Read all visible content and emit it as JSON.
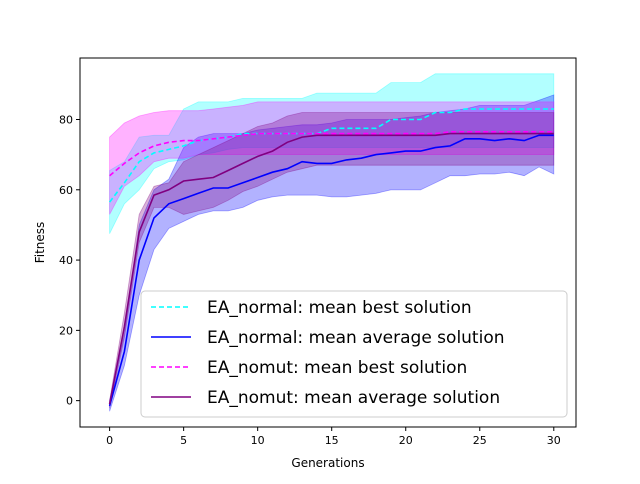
{
  "chart_data": {
    "type": "line",
    "title": "",
    "xlabel": "Generations",
    "ylabel": "Fitness",
    "xlim": [
      -2,
      31.5
    ],
    "ylim": [
      -7.5,
      97.5
    ],
    "xticks": [
      0,
      5,
      10,
      15,
      20,
      25,
      30
    ],
    "yticks": [
      0,
      20,
      40,
      60,
      80
    ],
    "grid": false,
    "legend_position": "lower-right",
    "x": [
      0,
      1,
      2,
      3,
      4,
      5,
      6,
      7,
      8,
      9,
      10,
      11,
      12,
      13,
      14,
      15,
      16,
      17,
      18,
      19,
      20,
      21,
      22,
      23,
      24,
      25,
      26,
      27,
      28,
      29,
      30
    ],
    "series": [
      {
        "name": "EA_normal: mean best solution",
        "color": "#00ffff",
        "linestyle": "dashed",
        "values": [
          56.5,
          62,
          68,
          70.5,
          71.5,
          72.5,
          74,
          74.5,
          75,
          76,
          76,
          76,
          76,
          76,
          76,
          77.5,
          77.5,
          77.5,
          77.5,
          80,
          80,
          80,
          82,
          82,
          83,
          83,
          83,
          83,
          83,
          83,
          83
        ],
        "band_low": [
          47.5,
          56,
          60,
          66,
          68,
          68.5,
          70,
          70.5,
          71.5,
          72,
          72,
          72,
          72,
          72,
          72,
          72,
          72,
          72,
          72,
          72,
          72,
          72,
          72,
          72,
          72,
          72,
          72,
          72,
          72,
          72,
          72
        ],
        "band_high": [
          65.5,
          68,
          75,
          75.5,
          75.5,
          83,
          85,
          85,
          85,
          86,
          86,
          86,
          86,
          86,
          87.5,
          87.5,
          87.5,
          87.5,
          87.5,
          90.5,
          90.5,
          90.5,
          93,
          93,
          93,
          93,
          93,
          93,
          93,
          93,
          93
        ]
      },
      {
        "name": "EA_normal: mean average solution",
        "color": "#0000ff",
        "linestyle": "solid",
        "values": [
          -1.5,
          14,
          40,
          52,
          56,
          57.5,
          59,
          60.5,
          60.5,
          62,
          63.5,
          65,
          66,
          68,
          67.5,
          67.5,
          68.5,
          69,
          70,
          70.5,
          71,
          71,
          72,
          72.5,
          74.5,
          74.5,
          74,
          74.5,
          74,
          75.5,
          75.5
        ],
        "band_low": [
          -3,
          10,
          30,
          43,
          49,
          51,
          53,
          54,
          54,
          55,
          57,
          58,
          58.5,
          58.5,
          58.5,
          58,
          58,
          58.5,
          59,
          60,
          60,
          60,
          62,
          64,
          64,
          64.5,
          64.5,
          65,
          64,
          66.5,
          64.5
        ],
        "band_high": [
          0,
          19,
          50,
          60,
          63,
          72,
          75,
          76,
          76,
          76,
          77,
          77.5,
          78,
          78.5,
          78.5,
          79,
          80,
          80,
          80,
          80,
          80.5,
          81,
          82,
          82.5,
          83,
          84,
          84,
          84,
          84,
          85.5,
          87
        ]
      },
      {
        "name": "EA_nomut: mean best solution",
        "color": "#ff00ff",
        "linestyle": "dashed",
        "values": [
          64,
          67.5,
          70.5,
          72.5,
          73.5,
          74,
          74,
          74.5,
          75,
          75.5,
          76,
          76,
          76,
          76,
          76,
          76,
          76,
          76,
          76,
          76,
          76,
          76,
          76,
          76.5,
          76.5,
          76.5,
          76.5,
          76.5,
          76.5,
          76.5,
          76.5
        ],
        "band_low": [
          53,
          61,
          64,
          68,
          69,
          69,
          70,
          70,
          70,
          70,
          70,
          70,
          70,
          70,
          70,
          70,
          70,
          70,
          70,
          70,
          70,
          70,
          70,
          70,
          70,
          70,
          70,
          70,
          70,
          70,
          70
        ],
        "band_high": [
          75,
          79,
          81,
          82,
          82.5,
          82.5,
          82.5,
          83,
          83.5,
          84,
          85,
          85,
          85,
          85,
          85,
          85,
          85,
          85,
          85,
          85,
          85,
          85,
          85,
          85,
          85,
          85,
          85,
          85,
          85,
          85,
          85
        ]
      },
      {
        "name": "EA_nomut: mean average solution",
        "color": "#800080",
        "linestyle": "solid",
        "values": [
          -1,
          21,
          48,
          58.5,
          60,
          62.5,
          63,
          63.5,
          65.5,
          67.5,
          69.5,
          71,
          73.5,
          75,
          75.5,
          75.5,
          75.5,
          75.5,
          75.5,
          75.5,
          75.5,
          75.5,
          75.5,
          76,
          76,
          76,
          76,
          76,
          76,
          76,
          76
        ],
        "band_low": [
          -2,
          18,
          45,
          55,
          55,
          53,
          54,
          55,
          57,
          59.5,
          61,
          63,
          65,
          66,
          67,
          67,
          67,
          67,
          67,
          67,
          67,
          67,
          67,
          67,
          67,
          67,
          67,
          67,
          67,
          67,
          67
        ],
        "band_high": [
          0,
          25,
          53,
          61,
          62,
          68,
          70,
          72,
          74,
          76,
          78,
          79,
          81,
          82,
          82,
          82,
          82,
          82,
          82,
          82,
          82,
          82,
          82,
          82,
          82,
          82,
          82,
          82,
          82,
          82,
          82
        ]
      }
    ]
  }
}
